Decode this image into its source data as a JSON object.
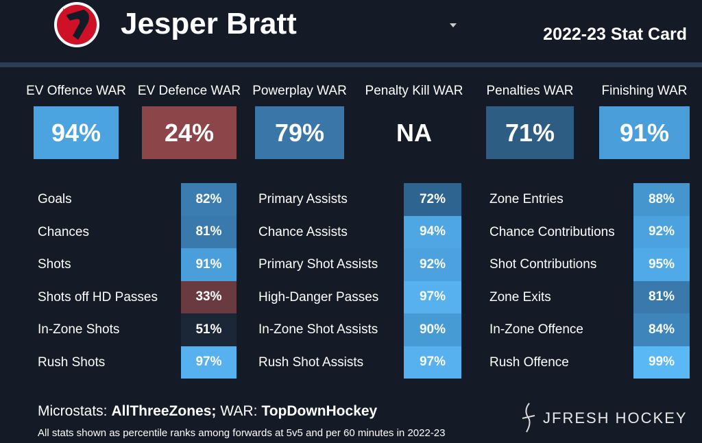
{
  "header": {
    "player": "Jesper Bratt",
    "subtitle": "2022-23 Stat Card"
  },
  "war": [
    {
      "label": "EV Offence WAR",
      "value": "94%",
      "color": "#4ba3df"
    },
    {
      "label": "EV Defence WAR",
      "value": "24%",
      "color": "#8c4549"
    },
    {
      "label": "Powerplay WAR",
      "value": "79%",
      "color": "#3a77a8"
    },
    {
      "label": "Penalty Kill WAR",
      "value": "NA"
    },
    {
      "label": "Penalties WAR",
      "value": "71%",
      "color": "#2e5d84"
    },
    {
      "label": "Finishing WAR",
      "value": "91%",
      "color": "#4a9fdb"
    }
  ],
  "microstats": [
    [
      {
        "label": "Goals",
        "value": "82%",
        "color": "#3b7db0"
      },
      {
        "label": "Chances",
        "value": "81%",
        "color": "#3a79ab"
      },
      {
        "label": "Shots",
        "value": "91%",
        "color": "#4a9fdb"
      },
      {
        "label": "Shots off HD Passes",
        "value": "33%",
        "color": "#6a3a41"
      },
      {
        "label": "In-Zone Shots",
        "value": "51%",
        "color": "#1b2636"
      },
      {
        "label": "Rush Shots",
        "value": "97%",
        "color": "#56b1ee"
      }
    ],
    [
      {
        "label": "Primary Assists",
        "value": "72%",
        "color": "#2e6490"
      },
      {
        "label": "Chance Assists",
        "value": "94%",
        "color": "#4ea6e3"
      },
      {
        "label": "Primary Shot Assists",
        "value": "92%",
        "color": "#4ba2df"
      },
      {
        "label": "High-Danger Passes",
        "value": "97%",
        "color": "#56b1ee"
      },
      {
        "label": "In-Zone Shot Assists",
        "value": "90%",
        "color": "#479bd5"
      },
      {
        "label": "Rush Shot Assists",
        "value": "97%",
        "color": "#56b1ee"
      }
    ],
    [
      {
        "label": "Zone Entries",
        "value": "88%",
        "color": "#4595cf"
      },
      {
        "label": "Chance Contributions",
        "value": "92%",
        "color": "#4ba2df"
      },
      {
        "label": "Shot Contributions",
        "value": "95%",
        "color": "#50aae7"
      },
      {
        "label": "Zone Exits",
        "value": "81%",
        "color": "#3a79ab"
      },
      {
        "label": "In-Zone Offence",
        "value": "84%",
        "color": "#3e85bb"
      },
      {
        "label": "Rush Offence",
        "value": "99%",
        "color": "#5ab8f5"
      }
    ]
  ],
  "footer": {
    "sources": [
      "Microstats:",
      "AllThreeZones;",
      "WAR:",
      "TopDownHockey"
    ],
    "note": "All stats shown as percentile ranks among forwards at 5v5 and per 60 minutes in 2022-23",
    "brand": "JFRESH HOCKEY"
  }
}
